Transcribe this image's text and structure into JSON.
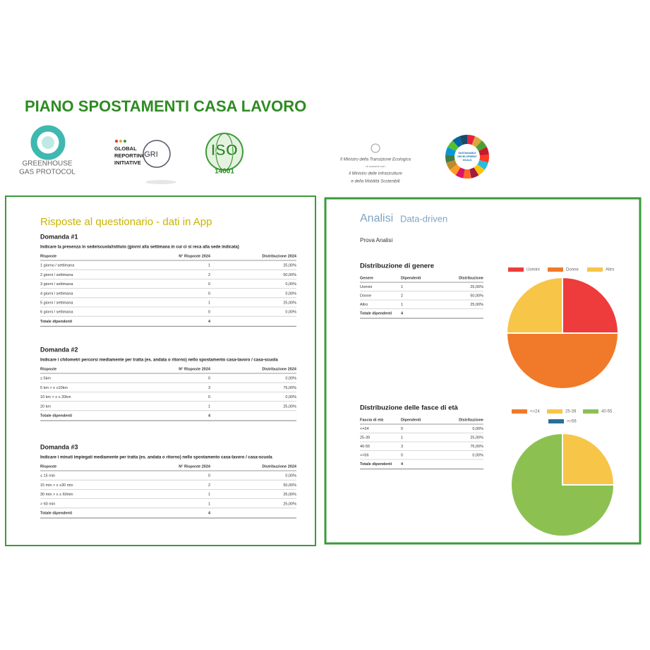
{
  "header": {
    "title": "PIANO SPOSTAMENTI CASA LAVORO"
  },
  "logos": {
    "ghg": [
      "GREENHOUSE",
      "GAS PROTOCOL"
    ],
    "gri": [
      "GLOBAL",
      "REPORTING",
      "INITIATIVE"
    ],
    "gri_mark": "GRI",
    "iso": "ISO",
    "iso_number": "14001",
    "ministry": [
      "Il Ministro della Transizione Ecologica",
      "di concerto con",
      "il Ministro delle Infrastrutture",
      "e della Mobilità Sostenibili"
    ],
    "sdg": [
      "SUSTAINABLE",
      "DEVELOPMENT",
      "GOALS"
    ]
  },
  "left": {
    "title": "Risposte al questionario - dati in App",
    "sections": [
      {
        "heading": "Domanda #1",
        "question": "Indicare la presenza in sede/scuola/istituto (giorni alla settimana in cui ci si reca alla sede indicata)",
        "columns": [
          "Risposte",
          "N° Risposte 2024",
          "Distribuzione 2024"
        ],
        "rows": [
          [
            "1 giorno / settimana",
            "1",
            "25,00%"
          ],
          [
            "2 giorni / settimana",
            "2",
            "50,00%"
          ],
          [
            "3 giorni / settimana",
            "0",
            "0,00%"
          ],
          [
            "4 giorni / settimana",
            "0",
            "0,00%"
          ],
          [
            "5 giorni / settimana",
            "1",
            "25,00%"
          ],
          [
            "6 giorni / settimana",
            "0",
            "0,00%"
          ]
        ],
        "total": [
          "Totale dipendenti",
          "4"
        ]
      },
      {
        "heading": "Domanda #2",
        "question": "Indicare i chilometri percorsi mediamente per tratta (es. andata o ritorno) nello spostamento casa-lavoro / casa-scuola",
        "columns": [
          "Risposte",
          "N° Risposte 2024",
          "Distribuzione 2024"
        ],
        "rows": [
          [
            "≤ 5km",
            "0",
            "0,00%"
          ],
          [
            "5 km > x ≤10km",
            "3",
            "75,00%"
          ],
          [
            "10 km > x ≤ 20km",
            "0",
            "0,00%"
          ],
          [
            "20 km",
            "1",
            "25,00%"
          ]
        ],
        "total": [
          "Totale dipendenti",
          "4"
        ]
      },
      {
        "heading": "Domanda #3",
        "question": "Indicare i minuti impiegati mediamente per tratta (es. andata o ritorno) nello spostamento casa-lavoro / casa-scuola",
        "columns": [
          "Risposte",
          "N° Risposte 2024",
          "Distribuzione 2024"
        ],
        "rows": [
          [
            "≤ 15 min",
            "0",
            "0,00%"
          ],
          [
            "15 min > x ≤30 min",
            "2",
            "50,00%"
          ],
          [
            "30 min > x ≤ 60min",
            "1",
            "25,00%"
          ],
          [
            "> 60 min",
            "1",
            "25,00%"
          ]
        ],
        "total": [
          "Totale dipendenti",
          "4"
        ]
      }
    ]
  },
  "right": {
    "title": "Analisi",
    "subtitle": "Data-driven",
    "note": "Prova Analisi",
    "sections": [
      {
        "heading": "Distribuzione di genere",
        "columns": [
          "Genere",
          "Dipendenti",
          "Distribuzione"
        ],
        "rows": [
          [
            "Uomini",
            "1",
            "25,00%"
          ],
          [
            "Donne",
            "2",
            "50,00%"
          ],
          [
            "Altro",
            "1",
            "25,00%"
          ]
        ],
        "total": [
          "Totale dipendenti",
          "4"
        ]
      },
      {
        "heading": "Distribuzione delle fasce di età",
        "columns": [
          "Fascia di età",
          "Dipendenti",
          "Distribuzione"
        ],
        "rows": [
          [
            "<=24",
            "0",
            "0,00%"
          ],
          [
            "25-39",
            "1",
            "25,00%"
          ],
          [
            "40-55",
            "3",
            "75,00%"
          ],
          [
            ">=56",
            "0",
            "0,00%"
          ]
        ],
        "total": [
          "Totale dipendenti",
          "4"
        ]
      }
    ]
  },
  "chart_data": [
    {
      "type": "pie",
      "categories": [
        "Uomini",
        "Donne",
        "Altro"
      ],
      "values": [
        1,
        2,
        1
      ],
      "colors": [
        "#ee3b3b",
        "#f07a2a",
        "#f7c548"
      ]
    },
    {
      "type": "pie",
      "categories": [
        "<=24",
        "25-39",
        "40-55",
        ">=56"
      ],
      "values": [
        0,
        1,
        3,
        0
      ],
      "colors": [
        "#f07a2a",
        "#f7c548",
        "#8cc152",
        "#2a6f97"
      ]
    }
  ]
}
